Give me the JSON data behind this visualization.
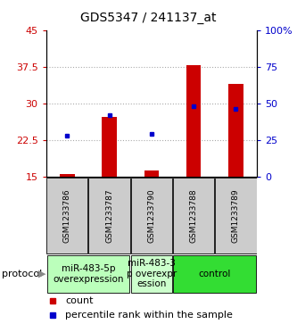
{
  "title": "GDS5347 / 241137_at",
  "samples": [
    "GSM1233786",
    "GSM1233787",
    "GSM1233790",
    "GSM1233788",
    "GSM1233789"
  ],
  "bar_bottoms": [
    15,
    15,
    15,
    15,
    15
  ],
  "bar_tops": [
    15.5,
    27.2,
    16.2,
    38.0,
    34.0
  ],
  "blue_y": [
    23.5,
    27.7,
    23.8,
    29.5,
    29.0
  ],
  "ylim": [
    15,
    45
  ],
  "y2lim": [
    0,
    100
  ],
  "yticks": [
    15,
    22.5,
    30,
    37.5,
    45
  ],
  "y2ticks": [
    0,
    25,
    50,
    75,
    100
  ],
  "ytick_labels": [
    "15",
    "22.5",
    "30",
    "37.5",
    "45"
  ],
  "y2tick_labels": [
    "0",
    "25",
    "50",
    "75",
    "100%"
  ],
  "bar_color": "#cc0000",
  "blue_color": "#0000cc",
  "grid_color": "#aaaaaa",
  "protocol_groups": [
    {
      "label": "miR-483-5p\noverexpression",
      "samples": [
        0,
        1
      ],
      "color": "#bbffbb"
    },
    {
      "label": "miR-483-3\np overexpr\nession",
      "samples": [
        2
      ],
      "color": "#ccffcc"
    },
    {
      "label": "control",
      "samples": [
        3,
        4
      ],
      "color": "#33dd33"
    }
  ],
  "protocol_label": "protocol",
  "legend_count_label": "count",
  "legend_pct_label": "percentile rank within the sample",
  "sample_box_color": "#cccccc",
  "title_fontsize": 10,
  "tick_fontsize": 8,
  "label_fontsize": 8,
  "protocol_fontsize": 7.5
}
